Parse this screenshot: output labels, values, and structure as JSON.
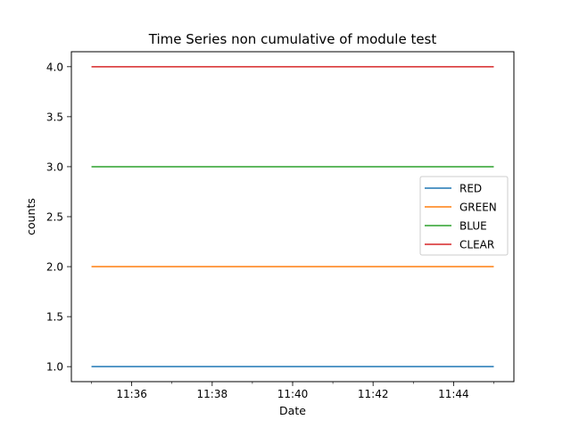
{
  "chart_data": {
    "type": "line",
    "title": "Time Series non cumulative of module test",
    "xlabel": "Date",
    "ylabel": "counts",
    "x": [
      "11:35",
      "11:45"
    ],
    "xticks": [
      "11:36",
      "11:38",
      "11:40",
      "11:42",
      "11:44"
    ],
    "xlim": [
      "11:34.5",
      "11:45.5"
    ],
    "yticks": [
      "1.0",
      "1.5",
      "2.0",
      "2.5",
      "3.0",
      "3.5",
      "4.0"
    ],
    "ylim": [
      0.85,
      4.15
    ],
    "grid": false,
    "legend_position": "center-right",
    "series": [
      {
        "name": "RED",
        "values": [
          1,
          1
        ],
        "color": "#1f77b4"
      },
      {
        "name": "GREEN",
        "values": [
          2,
          2
        ],
        "color": "#ff7f0e"
      },
      {
        "name": "BLUE",
        "values": [
          3,
          3
        ],
        "color": "#2ca02c"
      },
      {
        "name": "CLEAR",
        "values": [
          4,
          4
        ],
        "color": "#d62728"
      }
    ]
  }
}
